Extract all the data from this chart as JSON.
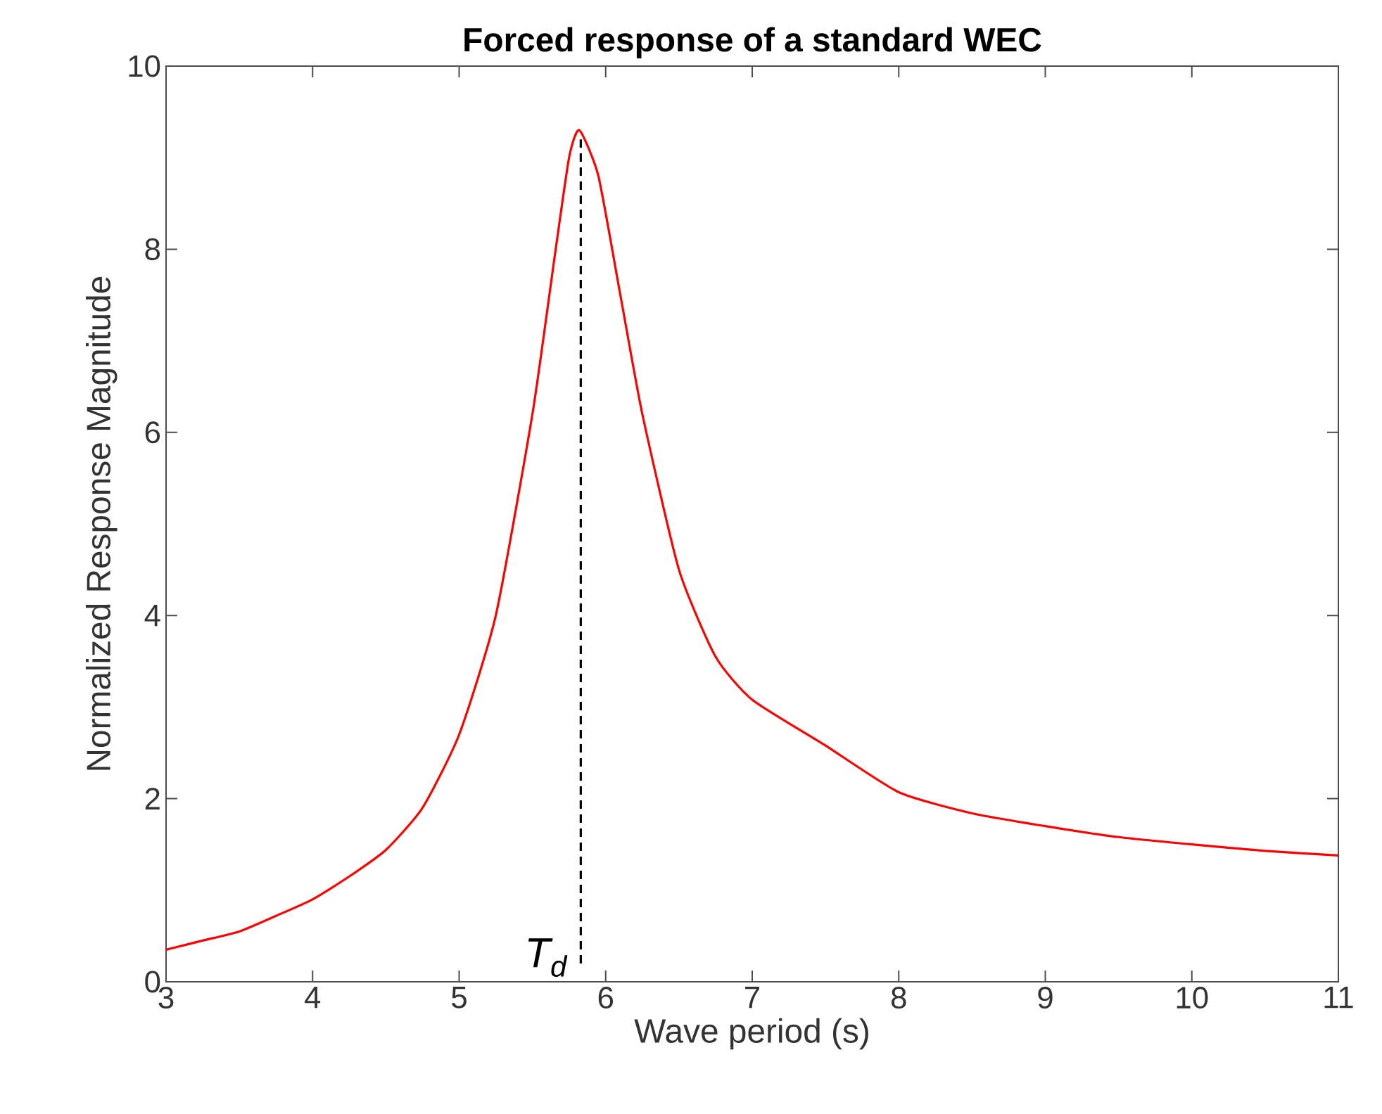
{
  "chart_data": {
    "type": "line",
    "title": "Forced response of a standard WEC",
    "xlabel": "Wave period (s)",
    "ylabel": "Normalized Response Magnitude",
    "xlim": [
      3,
      11
    ],
    "ylim": [
      0,
      10
    ],
    "xticks": [
      3,
      4,
      5,
      6,
      7,
      8,
      9,
      10,
      11
    ],
    "yticks": [
      0,
      2,
      4,
      6,
      8,
      10
    ],
    "grid": false,
    "marker": "none",
    "line_style": "solid",
    "series": [
      {
        "color": "#ff0000",
        "x": [
          3,
          3.25,
          3.5,
          3.75,
          4,
          4.25,
          4.5,
          4.75,
          5,
          5.25,
          5.5,
          5.65,
          5.75,
          5.82,
          5.95,
          6.1,
          6.25,
          6.5,
          6.75,
          7,
          7.5,
          8,
          8.5,
          9,
          9.5,
          10,
          10.5,
          11
        ],
        "values": [
          0.35,
          0.45,
          0.55,
          0.72,
          0.9,
          1.15,
          1.44,
          1.9,
          2.7,
          4.0,
          6.2,
          7.9,
          9.0,
          9.3,
          8.8,
          7.5,
          6.2,
          4.5,
          3.55,
          3.08,
          2.58,
          2.07,
          1.84,
          1.7,
          1.58,
          1.5,
          1.43,
          1.38
        ]
      }
    ],
    "ref_lines": [
      {
        "axis": "x",
        "value": 5.83,
        "label": "T$_{d}$",
        "color": "#000000",
        "line_style": "dashed"
      }
    ]
  }
}
